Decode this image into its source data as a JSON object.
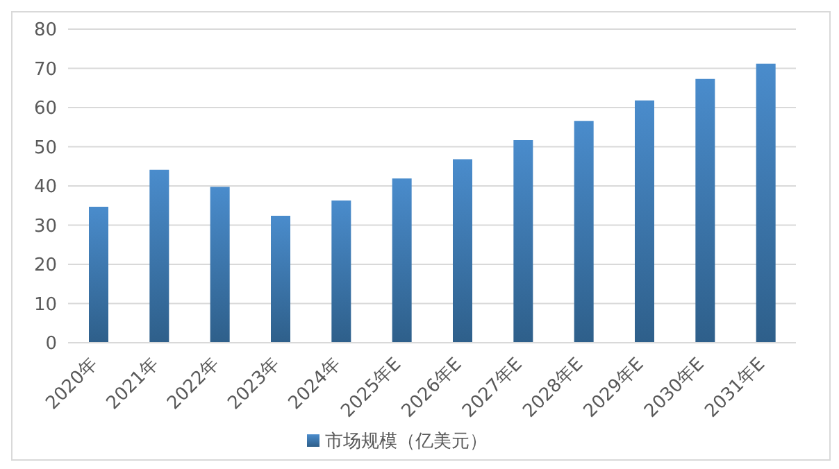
{
  "chart_data": {
    "type": "bar",
    "categories": [
      "2020年",
      "2021年",
      "2022年",
      "2023年",
      "2024年",
      "2025年E",
      "2026年E",
      "2027年E",
      "2028年E",
      "2029年E",
      "2030年E",
      "2031年E"
    ],
    "series": [
      {
        "name": "市场规模（亿美元）",
        "color": "#4a8ccc",
        "values": [
          34.7,
          44.1,
          39.8,
          32.4,
          36.3,
          41.9,
          46.8,
          51.7,
          56.6,
          61.8,
          67.3,
          71.2
        ]
      }
    ],
    "ylim": [
      0,
      80
    ],
    "yticks": [
      0,
      10,
      20,
      30,
      40,
      50,
      60,
      70,
      80
    ],
    "grid": "y",
    "legend": "bottom"
  }
}
